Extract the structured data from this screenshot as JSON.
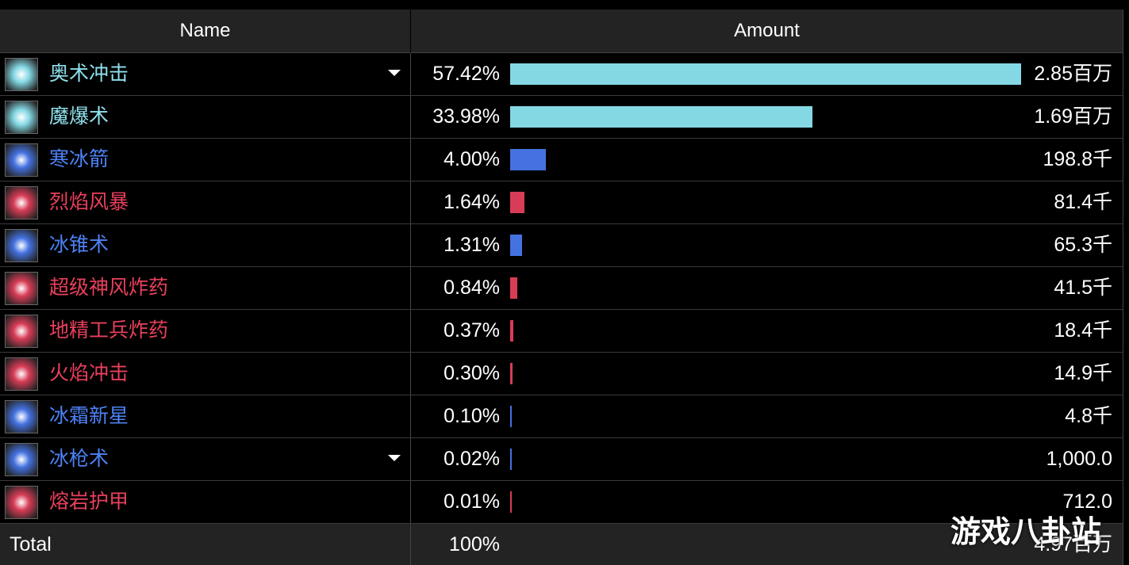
{
  "header": {
    "name": "Name",
    "amount": "Amount"
  },
  "rows": [
    {
      "name": "奥术冲击",
      "percent": "57.42%",
      "amount": "2.85百万",
      "color": "#84d8e4",
      "text_color": "#8fe0ec",
      "expandable": true
    },
    {
      "name": "魔爆术",
      "percent": "33.98%",
      "amount": "1.69百万",
      "color": "#84d8e4",
      "text_color": "#8fe0ec",
      "expandable": false
    },
    {
      "name": "寒冰箭",
      "percent": "4.00%",
      "amount": "198.8千",
      "color": "#4472e0",
      "text_color": "#4d82f5",
      "expandable": false
    },
    {
      "name": "烈焰风暴",
      "percent": "1.64%",
      "amount": "81.4千",
      "color": "#d83c56",
      "text_color": "#e8405c",
      "expandable": false
    },
    {
      "name": "冰锥术",
      "percent": "1.31%",
      "amount": "65.3千",
      "color": "#4472e0",
      "text_color": "#4d82f5",
      "expandable": false
    },
    {
      "name": "超级神风炸药",
      "percent": "0.84%",
      "amount": "41.5千",
      "color": "#d83c56",
      "text_color": "#e8405c",
      "expandable": false
    },
    {
      "name": "地精工兵炸药",
      "percent": "0.37%",
      "amount": "18.4千",
      "color": "#d83c56",
      "text_color": "#e8405c",
      "expandable": false
    },
    {
      "name": "火焰冲击",
      "percent": "0.30%",
      "amount": "14.9千",
      "color": "#d83c56",
      "text_color": "#e8405c",
      "expandable": false
    },
    {
      "name": "冰霜新星",
      "percent": "0.10%",
      "amount": "4.8千",
      "color": "#4472e0",
      "text_color": "#4d82f5",
      "expandable": false
    },
    {
      "name": "冰枪术",
      "percent": "0.02%",
      "amount": "1,000.0",
      "color": "#4472e0",
      "text_color": "#4d82f5",
      "expandable": true
    },
    {
      "name": "熔岩护甲",
      "percent": "0.01%",
      "amount": "712.0",
      "color": "#d83c56",
      "text_color": "#e8405c",
      "expandable": false
    }
  ],
  "total": {
    "label": "Total",
    "percent": "100%",
    "amount": "4.97百万"
  },
  "watermark": "游戏八卦站"
}
